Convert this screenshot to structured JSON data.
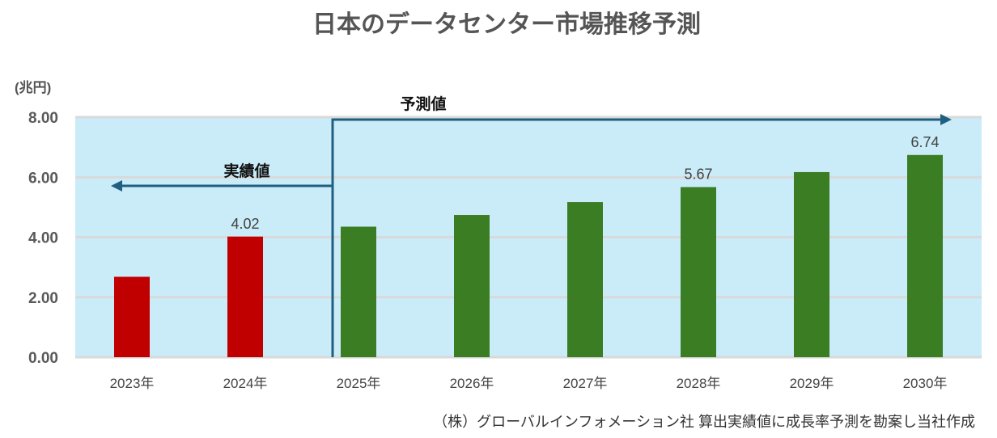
{
  "chart_data": {
    "type": "bar",
    "title": "日本のデータセンター市場推移予測",
    "ylabel": "(兆円)",
    "xlabel": "",
    "ylim": [
      0,
      8
    ],
    "yticks": [
      "0.00",
      "2.00",
      "4.00",
      "6.00",
      "8.00"
    ],
    "categories": [
      "2023年",
      "2024年",
      "2025年",
      "2026年",
      "2027年",
      "2028年",
      "2029年",
      "2030年"
    ],
    "values": [
      2.68,
      4.02,
      4.35,
      4.74,
      5.17,
      5.67,
      6.17,
      6.74
    ],
    "data_labels": {
      "1": "4.02",
      "5": "5.67",
      "7": "6.74"
    },
    "bar_colors": [
      "#c00000",
      "#c00000",
      "#3b7d23",
      "#3b7d23",
      "#3b7d23",
      "#3b7d23",
      "#3b7d23",
      "#3b7d23"
    ],
    "plot_background": "#caecf9",
    "grid": true,
    "annotations": {
      "actual": "実績値",
      "forecast": "予測値",
      "arrow_color": "#1f5f80"
    },
    "source": "（株）グローバルインフォメーション社 算出実績値に成長率予測を勘案し当社作成"
  }
}
